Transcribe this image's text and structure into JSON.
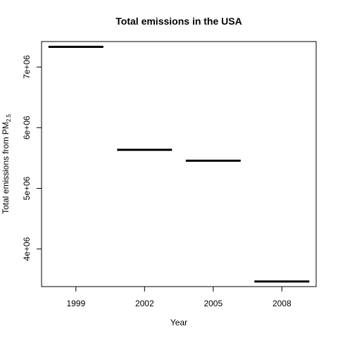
{
  "chart_data": {
    "type": "bar",
    "title": "Total emissions in the USA",
    "xlabel": "Year",
    "ylabel": "Total emissions from PM",
    "ylabel_subscript": "2.5",
    "categories": [
      "1999",
      "2002",
      "2005",
      "2008"
    ],
    "values": [
      7332967,
      5635780,
      5454703,
      3464206
    ],
    "ylim": [
      3380000,
      7420000
    ],
    "yticks": [
      4000000,
      5000000,
      6000000,
      7000000
    ],
    "ytick_labels": [
      "4e+06",
      "5e+06",
      "6e+06",
      "7e+06"
    ],
    "grid": false,
    "line_color": "#000000"
  }
}
